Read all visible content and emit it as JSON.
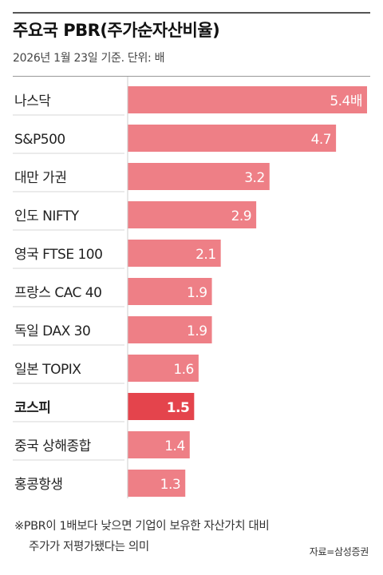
{
  "header": {
    "title": "주요국 PBR(주가순자산비율)",
    "subtitle": "2026년 1월 23일 기준. 단위: 배"
  },
  "colors": {
    "bar": "#ee7f86",
    "highlight_bar": "#e4444c",
    "separator": "#d7d7d7",
    "value_text": "#ffffff"
  },
  "chart_data": {
    "type": "bar",
    "orientation": "horizontal",
    "categories": [
      "나스닥",
      "S&P500",
      "대만 가권",
      "인도 NIFTY",
      "영국 FTSE 100",
      "프랑스 CAC 40",
      "독일 DAX 30",
      "일본 TOPIX",
      "코스피",
      "중국 상해종합",
      "홍콩항생"
    ],
    "values": [
      5.4,
      4.7,
      3.2,
      2.9,
      2.1,
      1.9,
      1.9,
      1.6,
      1.5,
      1.4,
      1.3
    ],
    "value_labels": [
      "5.4배",
      "4.7",
      "3.2",
      "2.9",
      "2.1",
      "1.9",
      "1.9",
      "1.6",
      "1.5",
      "1.4",
      "1.3"
    ],
    "highlight": "코스피",
    "xlim": [
      0,
      5.4
    ],
    "grid": false,
    "legend": "none"
  },
  "footer": {
    "note_line1": "※PBR이 1배보다 낮으면 기업이 보유한 자산가치 대비",
    "note_line2": "주가가 저평가됐다는 의미",
    "source": "자료=삼성증권"
  }
}
